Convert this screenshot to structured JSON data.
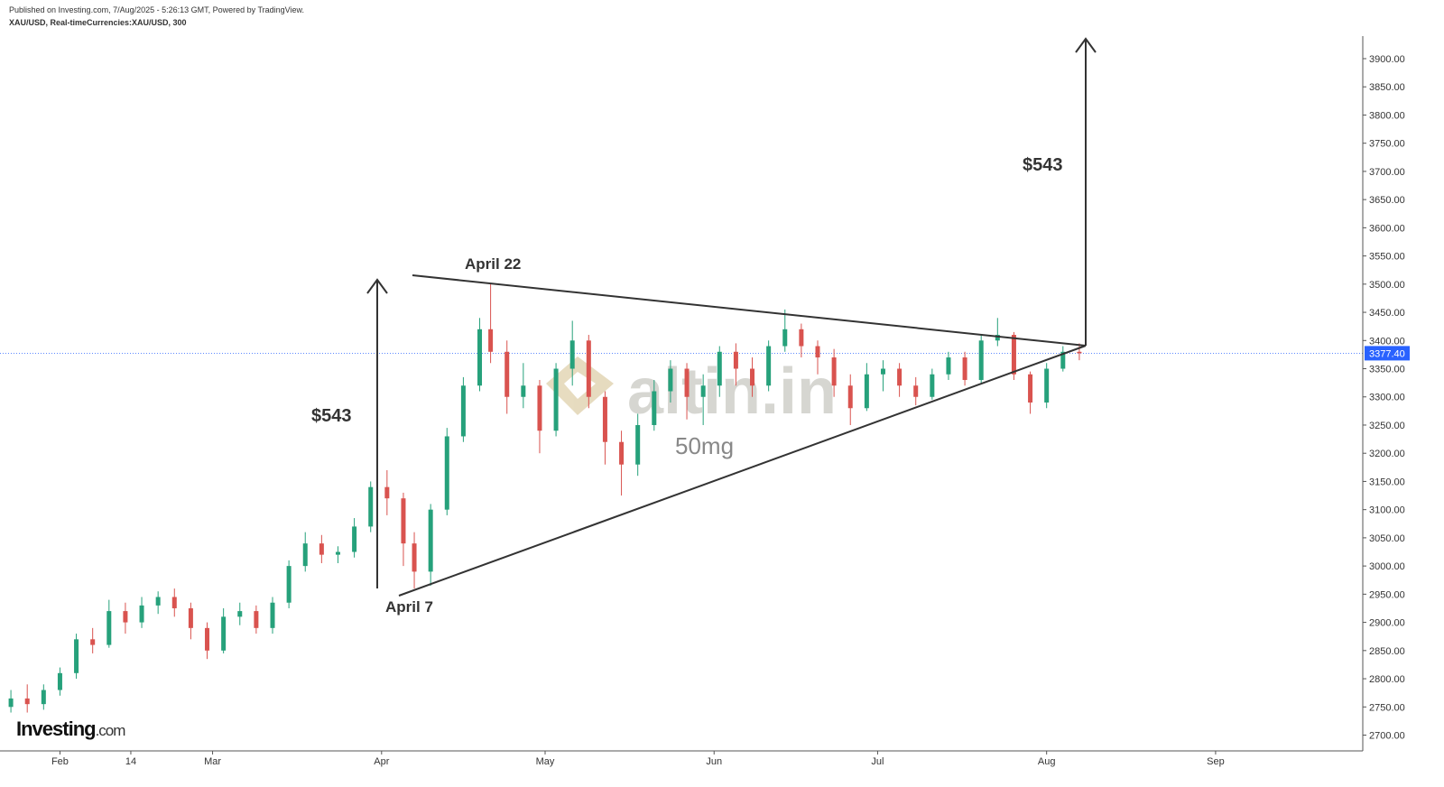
{
  "chart_data": {
    "type": "candlestick",
    "header": "Published on Investing.com, 7/Aug/2025 - 5:26:13 GMT, Powered by TradingView.",
    "subtitle": "XAU/USD, Real-timeCurrencies:XAU/USD, 300",
    "logo": {
      "name": "Investing",
      "suffix": ".com"
    },
    "watermark": "altin.in",
    "watermark_sub": "50mg",
    "annotations": [
      "April 22",
      "April 7",
      "$543",
      "$543"
    ],
    "up_color": "#26a17b",
    "down_color": "#d9534f",
    "last_price": {
      "value": 3377.4,
      "label": "3377.40"
    },
    "last_price_color": "#2962ff",
    "xlim": [
      21,
      271
    ],
    "xticks": [
      {
        "value": 32,
        "label": "Feb"
      },
      {
        "value": 45,
        "label": "14"
      },
      {
        "value": 60,
        "label": "Mar"
      },
      {
        "value": 91,
        "label": "Apr"
      },
      {
        "value": 121,
        "label": "May"
      },
      {
        "value": 152,
        "label": "Jun"
      },
      {
        "value": 182,
        "label": "Jul"
      },
      {
        "value": 213,
        "label": "Aug"
      },
      {
        "value": 244,
        "label": "Sep"
      }
    ],
    "ylim": [
      2672,
      3940
    ],
    "yticks": [
      {
        "value": 2700,
        "label": "2700.00"
      },
      {
        "value": 2750,
        "label": "2750.00"
      },
      {
        "value": 2800,
        "label": "2800.00"
      },
      {
        "value": 2850,
        "label": "2850.00"
      },
      {
        "value": 2900,
        "label": "2900.00"
      },
      {
        "value": 2950,
        "label": "2950.00"
      },
      {
        "value": 3000,
        "label": "3000.00"
      },
      {
        "value": 3050,
        "label": "3050.00"
      },
      {
        "value": 3100,
        "label": "3100.00"
      },
      {
        "value": 3150,
        "label": "3150.00"
      },
      {
        "value": 3200,
        "label": "3200.00"
      },
      {
        "value": 3250,
        "label": "3250.00"
      },
      {
        "value": 3300,
        "label": "3300.00"
      },
      {
        "value": 3350,
        "label": "3350.00"
      },
      {
        "value": 3400,
        "label": "3400.00"
      },
      {
        "value": 3450,
        "label": "3450.00"
      },
      {
        "value": 3500,
        "label": "3500.00"
      },
      {
        "value": 3550,
        "label": "3550.00"
      },
      {
        "value": 3600,
        "label": "3600.00"
      },
      {
        "value": 3650,
        "label": "3650.00"
      },
      {
        "value": 3700,
        "label": "3700.00"
      },
      {
        "value": 3750,
        "label": "3750.00"
      },
      {
        "value": 3800,
        "label": "3800.00"
      },
      {
        "value": 3850,
        "label": "3850.00"
      },
      {
        "value": 3900,
        "label": "3900.00"
      }
    ],
    "x": [
      23,
      26,
      29,
      32,
      35,
      38,
      41,
      44,
      47,
      50,
      53,
      56,
      59,
      62,
      65,
      68,
      71,
      74,
      77,
      80,
      83,
      86,
      89,
      92,
      95,
      97,
      100,
      103,
      106,
      109,
      111,
      114,
      117,
      120,
      123,
      126,
      129,
      132,
      135,
      138,
      141,
      144,
      147,
      150,
      153,
      156,
      159,
      162,
      165,
      168,
      171,
      174,
      177,
      180,
      183,
      186,
      189,
      192,
      195,
      198,
      201,
      204,
      207,
      210,
      213,
      216,
      219
    ],
    "open": [
      2750,
      2765,
      2755,
      2780,
      2810,
      2870,
      2860,
      2920,
      2900,
      2930,
      2945,
      2925,
      2890,
      2850,
      2910,
      2920,
      2890,
      2935,
      3000,
      3040,
      3020,
      3025,
      3070,
      3140,
      3120,
      3040,
      2990,
      3100,
      3230,
      3320,
      3420,
      3380,
      3300,
      3320,
      3240,
      3350,
      3400,
      3300,
      3220,
      3180,
      3250,
      3310,
      3350,
      3300,
      3320,
      3380,
      3350,
      3320,
      3390,
      3420,
      3390,
      3370,
      3320,
      3280,
      3340,
      3350,
      3320,
      3300,
      3340,
      3370,
      3330,
      3400,
      3410,
      3340,
      3290,
      3350,
      3380
    ],
    "high": [
      2780,
      2790,
      2790,
      2820,
      2880,
      2890,
      2940,
      2935,
      2945,
      2955,
      2960,
      2935,
      2900,
      2925,
      2935,
      2930,
      2945,
      3010,
      3060,
      3055,
      3035,
      3085,
      3150,
      3170,
      3130,
      3060,
      3110,
      3245,
      3335,
      3440,
      3500,
      3400,
      3360,
      3330,
      3360,
      3435,
      3410,
      3310,
      3240,
      3270,
      3330,
      3365,
      3360,
      3340,
      3390,
      3395,
      3370,
      3400,
      3455,
      3430,
      3400,
      3385,
      3340,
      3360,
      3365,
      3360,
      3335,
      3350,
      3380,
      3380,
      3410,
      3440,
      3415,
      3345,
      3360,
      3390,
      3395
    ],
    "low": [
      2740,
      2740,
      2745,
      2770,
      2800,
      2845,
      2855,
      2880,
      2890,
      2915,
      2910,
      2870,
      2835,
      2845,
      2895,
      2880,
      2880,
      2925,
      2990,
      3005,
      3005,
      3015,
      3060,
      3090,
      3000,
      2960,
      2965,
      3090,
      3220,
      3310,
      3360,
      3270,
      3280,
      3200,
      3230,
      3320,
      3280,
      3180,
      3125,
      3160,
      3240,
      3290,
      3260,
      3250,
      3300,
      3320,
      3300,
      3310,
      3380,
      3370,
      3340,
      3300,
      3250,
      3275,
      3310,
      3300,
      3285,
      3295,
      3330,
      3320,
      3325,
      3390,
      3330,
      3270,
      3280,
      3345,
      3365
    ],
    "close": [
      2765,
      2755,
      2780,
      2810,
      2870,
      2860,
      2920,
      2900,
      2930,
      2945,
      2925,
      2890,
      2850,
      2910,
      2920,
      2890,
      2935,
      3000,
      3040,
      3020,
      3025,
      3070,
      3140,
      3120,
      3040,
      2990,
      3100,
      3230,
      3320,
      3420,
      3380,
      3300,
      3320,
      3240,
      3350,
      3400,
      3300,
      3220,
      3180,
      3250,
      3310,
      3350,
      3300,
      3320,
      3380,
      3350,
      3320,
      3390,
      3420,
      3390,
      3370,
      3320,
      3280,
      3340,
      3350,
      3320,
      3300,
      3340,
      3370,
      3330,
      3400,
      3410,
      3340,
      3290,
      3350,
      3380,
      3377.4
    ]
  }
}
